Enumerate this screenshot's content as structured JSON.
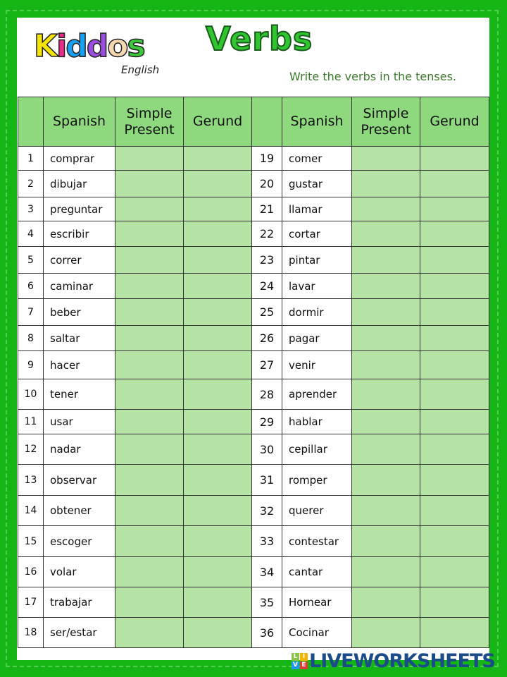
{
  "header": {
    "logo_text": "Kiddos",
    "logo_subtext": "English",
    "title": "Verbs",
    "instruction": "Write the verbs in the tenses."
  },
  "table": {
    "columns": [
      "",
      "Spanish",
      "Simple Present",
      "Gerund",
      "",
      "Spanish",
      "Simple Present",
      "Gerund"
    ],
    "left": [
      {
        "n": "1",
        "word": "comprar"
      },
      {
        "n": "2",
        "word": "dibujar"
      },
      {
        "n": "3",
        "word": "preguntar"
      },
      {
        "n": "4",
        "word": "escribir"
      },
      {
        "n": "5",
        "word": "correr"
      },
      {
        "n": "6",
        "word": "caminar"
      },
      {
        "n": "7",
        "word": "beber"
      },
      {
        "n": "8",
        "word": "saltar"
      },
      {
        "n": "9",
        "word": "hacer"
      },
      {
        "n": "10",
        "word": "tener"
      },
      {
        "n": "11",
        "word": "usar"
      },
      {
        "n": "12",
        "word": "nadar"
      },
      {
        "n": "13",
        "word": "observar"
      },
      {
        "n": "14",
        "word": "obtener"
      },
      {
        "n": "15",
        "word": "escoger"
      },
      {
        "n": "16",
        "word": "volar"
      },
      {
        "n": "17",
        "word": "trabajar"
      },
      {
        "n": "18",
        "word": "ser/estar"
      }
    ],
    "right": [
      {
        "n": "19",
        "word": "comer"
      },
      {
        "n": "20",
        "word": "gustar"
      },
      {
        "n": "21",
        "word": "llamar"
      },
      {
        "n": "22",
        "word": "cortar"
      },
      {
        "n": "23",
        "word": "pintar"
      },
      {
        "n": "24",
        "word": "lavar"
      },
      {
        "n": "25",
        "word": "dormir"
      },
      {
        "n": "26",
        "word": "pagar"
      },
      {
        "n": "27",
        "word": "venir"
      },
      {
        "n": "28",
        "word": "aprender"
      },
      {
        "n": "29",
        "word": "hablar"
      },
      {
        "n": "30",
        "word": "cepillar"
      },
      {
        "n": "31",
        "word": "romper"
      },
      {
        "n": "32",
        "word": "querer"
      },
      {
        "n": "33",
        "word": "contestar"
      },
      {
        "n": "34",
        "word": "cantar"
      },
      {
        "n": "35",
        "word": "Hornear"
      },
      {
        "n": "36",
        "word": "Cocinar"
      }
    ]
  },
  "footer": {
    "brand": "LIVEWORKSHEETS",
    "badge_letters": [
      "L",
      "I",
      "V",
      "E"
    ]
  },
  "colors": {
    "background": "#14b514",
    "header_cell": "#8ed97e",
    "input_cell": "#b5e3a4",
    "title": "#2fc52f"
  }
}
